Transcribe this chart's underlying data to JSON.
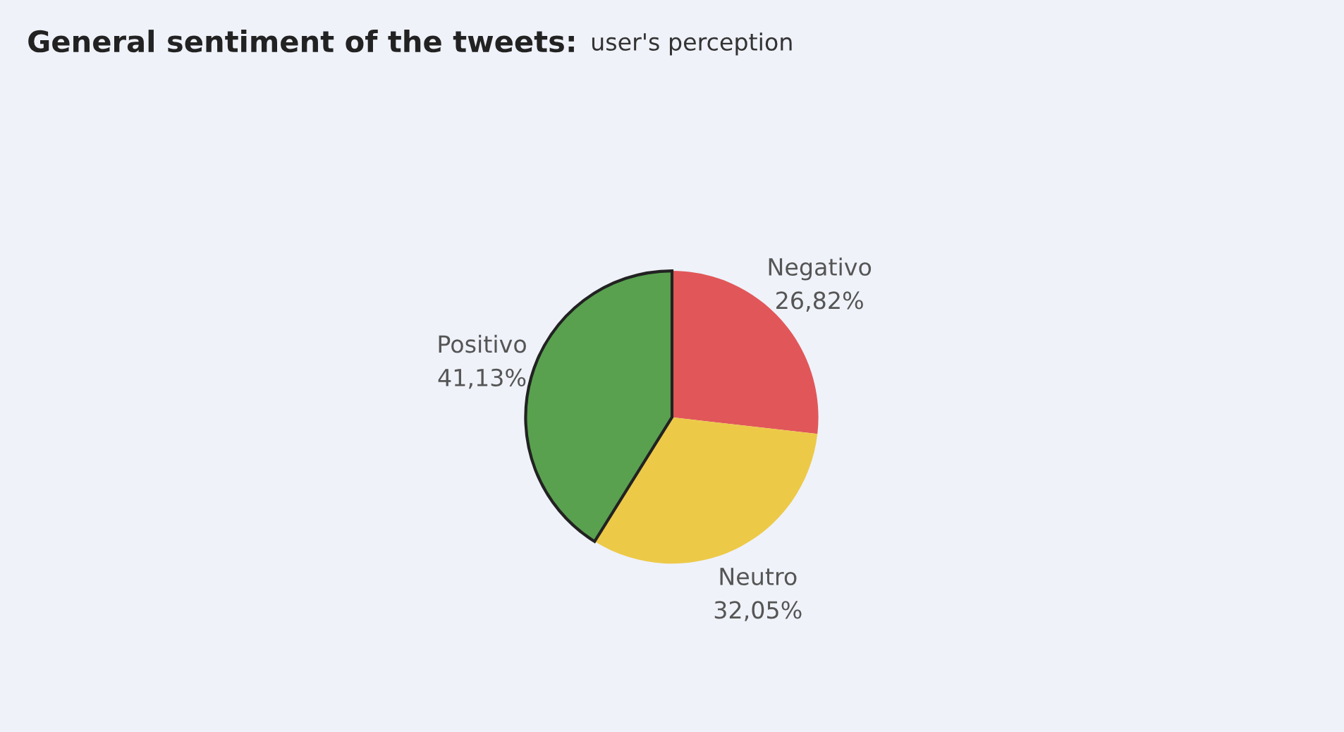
{
  "chart_data": {
    "type": "pie",
    "title": "General sentiment of the tweets:",
    "subtitle": "user's perception",
    "categories": [
      "Negativo",
      "Neutro",
      "Positivo"
    ],
    "values": [
      26.82,
      32.05,
      41.13
    ],
    "value_labels": [
      "26,82%",
      "32,05%",
      "41,13%"
    ],
    "colors": [
      "#e15759",
      "#edc948",
      "#59a14f"
    ],
    "legend": false
  }
}
